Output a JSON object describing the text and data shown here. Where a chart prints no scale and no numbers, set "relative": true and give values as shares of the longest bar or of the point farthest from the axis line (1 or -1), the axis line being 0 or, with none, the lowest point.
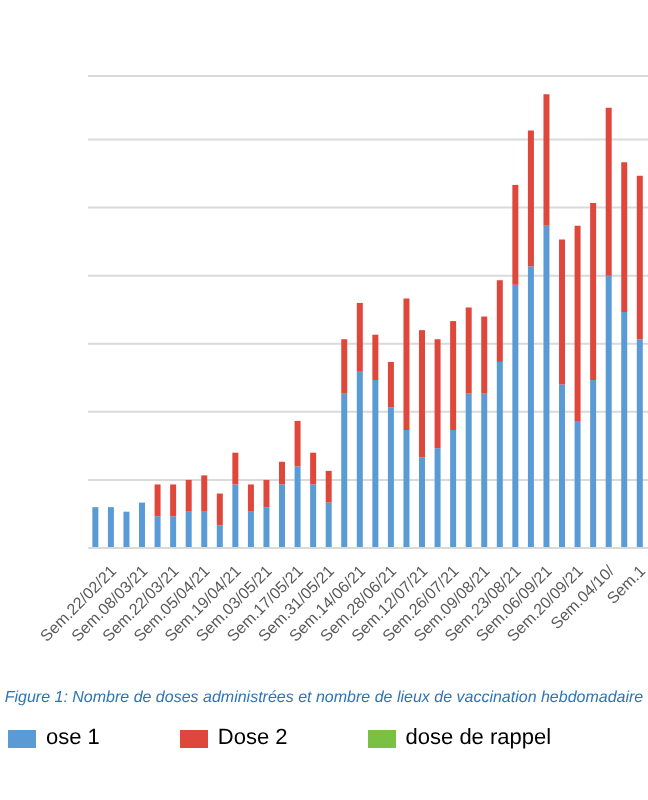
{
  "chart_data": {
    "type": "bar",
    "stacked": true,
    "relative": true,
    "grid": "y",
    "legend": "bottom",
    "categories": [
      null,
      "Sem.22/02/21",
      null,
      "Sem.08/03/21",
      null,
      "Sem.22/03/21",
      null,
      "Sem.05/04/21",
      null,
      "Sem.19/04/21",
      null,
      "Sem.03/05/21",
      null,
      "Sem.17/05/21",
      null,
      "Sem.31/05/21",
      null,
      "Sem.14/06/21",
      null,
      "Sem.28/06/21",
      null,
      "Sem.12/07/21",
      null,
      "Sem.26/07/21",
      null,
      "Sem.09/08/21",
      null,
      "Sem.23/08/21",
      null,
      "Sem.06/09/21",
      null,
      "Sem.20/09/21",
      null,
      "Sem.04/10/",
      null,
      "Sem.1"
    ],
    "series": [
      {
        "name": "ose 1",
        "color": "#5b9bd5",
        "values": [
          0.09,
          0.09,
          0.08,
          0.1,
          0.07,
          0.07,
          0.08,
          0.08,
          0.05,
          0.14,
          0.08,
          0.09,
          0.14,
          0.18,
          0.14,
          0.1,
          0.34,
          0.39,
          0.37,
          0.31,
          0.26,
          0.2,
          0.22,
          0.26,
          0.34,
          0.34,
          0.41,
          0.58,
          0.62,
          0.71,
          0.36,
          0.28,
          0.37,
          0.6,
          0.52,
          0.46
        ]
      },
      {
        "name": "Dose 2",
        "color": "#e0473c",
        "values": [
          0,
          0,
          0,
          0,
          0.07,
          0.07,
          0.07,
          0.08,
          0.07,
          0.07,
          0.06,
          0.06,
          0.05,
          0.1,
          0.07,
          0.07,
          0.12,
          0.15,
          0.1,
          0.1,
          0.29,
          0.28,
          0.24,
          0.24,
          0.19,
          0.17,
          0.18,
          0.22,
          0.3,
          0.29,
          0.32,
          0.43,
          0.39,
          0.37,
          0.33,
          0.36
        ]
      },
      {
        "name": "dose de rappel",
        "color": "#7ac143",
        "values": [
          null,
          null,
          null,
          null,
          null,
          null,
          null,
          null,
          null,
          null,
          null,
          null,
          null,
          null,
          null,
          null,
          null,
          null,
          null,
          null,
          null,
          null,
          null,
          null,
          null,
          null,
          null,
          null,
          null,
          null,
          null,
          null,
          null,
          null,
          null,
          null
        ]
      }
    ],
    "annotations": [
      "Figure 1: Nombre de doses administrées et nombre de lieux de vaccination hebdomadaire"
    ]
  }
}
